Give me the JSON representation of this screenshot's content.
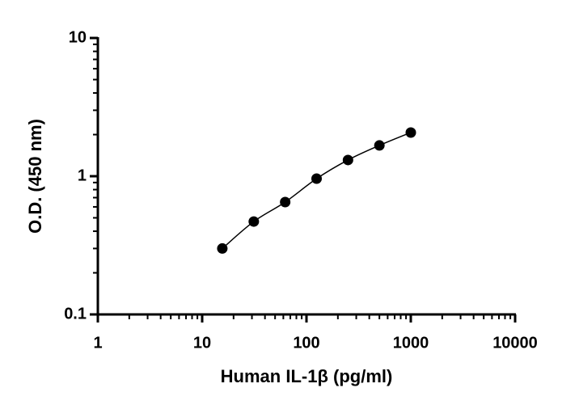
{
  "chart_data": {
    "type": "scatter",
    "x_label": "Human IL-1β (pg/ml)",
    "y_label": "O.D. (450 nm)",
    "x": [
      15.6,
      31.25,
      62.5,
      125,
      250,
      500,
      1000
    ],
    "series": [
      {
        "color": "#000000",
        "values": [
          0.3,
          0.47,
          0.65,
          0.96,
          1.31,
          1.67,
          2.07
        ]
      }
    ],
    "x_log": true,
    "y_log": true,
    "xlim": [
      1,
      10000
    ],
    "xticks": [
      1,
      10,
      100,
      1000,
      10000
    ],
    "ylim": [
      0.1,
      10
    ],
    "yticks": [
      0.1,
      1,
      10
    ],
    "fit_line": true,
    "grid": false
  }
}
